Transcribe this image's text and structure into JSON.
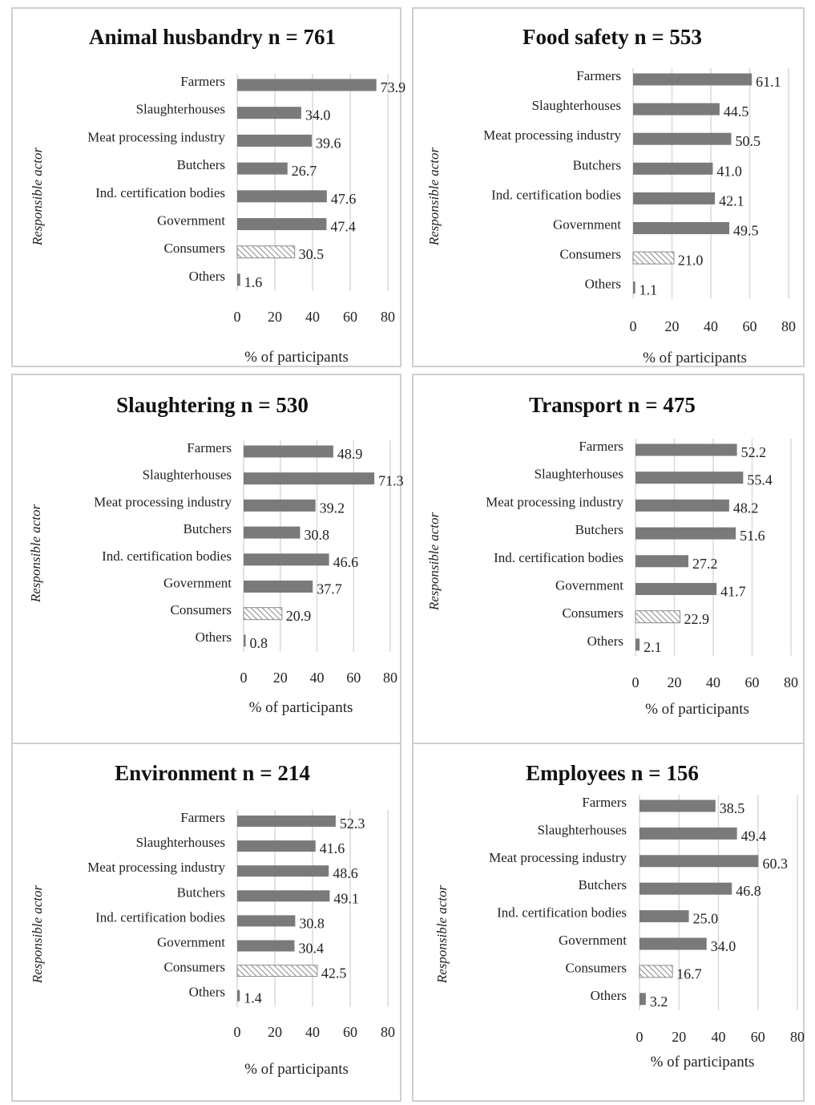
{
  "chart_data": [
    {
      "type": "bar",
      "orientation": "horizontal",
      "title": "Animal husbandry n = 761",
      "ylabel": "Responsible actor",
      "xlabel": "% of participants",
      "xlim": [
        0,
        80
      ],
      "xticks": [
        0,
        20,
        40,
        60,
        80
      ],
      "grid": true,
      "categories": [
        "Farmers",
        "Slaughterhouses",
        "Meat processing industry",
        "Butchers",
        "Ind. certification bodies",
        "Government",
        "Consumers",
        "Others"
      ],
      "values": [
        73.9,
        34.0,
        39.6,
        26.7,
        47.6,
        47.4,
        30.5,
        1.6
      ],
      "value_labels": [
        "73.9",
        "34.0",
        "39.6",
        "26.7",
        "47.6",
        "47.4",
        "30.5",
        "1.6"
      ],
      "styles": [
        "solid",
        "solid",
        "solid",
        "solid",
        "solid",
        "solid",
        "hatched",
        "solid"
      ]
    },
    {
      "type": "bar",
      "orientation": "horizontal",
      "title": "Food safety n = 553",
      "ylabel": "Responsible actor",
      "xlabel": "% of participants",
      "xlim": [
        0,
        80
      ],
      "xticks": [
        0,
        20,
        40,
        60,
        80
      ],
      "grid": true,
      "categories": [
        "Farmers",
        "Slaughterhouses",
        "Meat processing industry",
        "Butchers",
        "Ind. certification bodies",
        "Government",
        "Consumers",
        "Others"
      ],
      "values": [
        61.1,
        44.5,
        50.5,
        41.0,
        42.1,
        49.5,
        21.0,
        1.1
      ],
      "value_labels": [
        "61.1",
        "44.5",
        "50.5",
        "41.0",
        "42.1",
        "49.5",
        "21.0",
        "1.1"
      ],
      "styles": [
        "solid",
        "solid",
        "solid",
        "solid",
        "solid",
        "solid",
        "hatched",
        "solid"
      ]
    },
    {
      "type": "bar",
      "orientation": "horizontal",
      "title": "Slaughtering n = 530",
      "ylabel": "Responsible actor",
      "xlabel": "% of participants",
      "xlim": [
        0,
        80
      ],
      "xticks": [
        0,
        20,
        40,
        60,
        80
      ],
      "grid": true,
      "categories": [
        "Farmers",
        "Slaughterhouses",
        "Meat processing industry",
        "Butchers",
        "Ind. certification bodies",
        "Government",
        "Consumers",
        "Others"
      ],
      "values": [
        48.9,
        71.3,
        39.2,
        30.8,
        46.6,
        37.7,
        20.9,
        0.8
      ],
      "value_labels": [
        "48.9",
        "71.3",
        "39.2",
        "30.8",
        "46.6",
        "37.7",
        "20.9",
        "0.8"
      ],
      "styles": [
        "solid",
        "solid",
        "solid",
        "solid",
        "solid",
        "solid",
        "hatched",
        "solid"
      ]
    },
    {
      "type": "bar",
      "orientation": "horizontal",
      "title": "Transport n = 475",
      "ylabel": "Responsible actor",
      "xlabel": "% of participants",
      "xlim": [
        0,
        80
      ],
      "xticks": [
        0,
        20,
        40,
        60,
        80
      ],
      "grid": true,
      "categories": [
        "Farmers",
        "Slaughterhouses",
        "Meat processing industry",
        "Butchers",
        "Ind. certification bodies",
        "Government",
        "Consumers",
        "Others"
      ],
      "values": [
        52.2,
        55.4,
        48.2,
        51.6,
        27.2,
        41.7,
        22.9,
        2.1
      ],
      "value_labels": [
        "52.2",
        "55.4",
        "48.2",
        "51.6",
        "27.2",
        "41.7",
        "22.9",
        "2.1"
      ],
      "styles": [
        "solid",
        "solid",
        "solid",
        "solid",
        "solid",
        "solid",
        "hatched",
        "solid"
      ]
    },
    {
      "type": "bar",
      "orientation": "horizontal",
      "title": "Environment n = 214",
      "ylabel": "Responsible actor",
      "xlabel": "% of participants",
      "xlim": [
        0,
        80
      ],
      "xticks": [
        0,
        20,
        40,
        60,
        80
      ],
      "grid": true,
      "categories": [
        "Farmers",
        "Slaughterhouses",
        "Meat processing industry",
        "Butchers",
        "Ind. certification bodies",
        "Government",
        "Consumers",
        "Others"
      ],
      "values": [
        52.3,
        41.6,
        48.6,
        49.1,
        30.8,
        30.4,
        42.5,
        1.4
      ],
      "value_labels": [
        "52.3",
        "41.6",
        "48.6",
        "49.1",
        "30.8",
        "30.4",
        "42.5",
        "1.4"
      ],
      "styles": [
        "solid",
        "solid",
        "solid",
        "solid",
        "solid",
        "solid",
        "hatched",
        "solid"
      ]
    },
    {
      "type": "bar",
      "orientation": "horizontal",
      "title": "Employees n = 156",
      "ylabel": "Responsible actor",
      "xlabel": "% of participants",
      "xlim": [
        0,
        80
      ],
      "xticks": [
        0,
        20,
        40,
        60,
        80
      ],
      "grid": true,
      "categories": [
        "Farmers",
        "Slaughterhouses",
        "Meat processing industry",
        "Butchers",
        "Ind. certification bodies",
        "Government",
        "Consumers",
        "Others"
      ],
      "values": [
        38.5,
        49.4,
        60.3,
        46.8,
        25.0,
        34.0,
        16.7,
        3.2
      ],
      "value_labels": [
        "38.5",
        "49.4",
        "60.3",
        "46.8",
        "25.0",
        "34.0",
        "16.7",
        "3.2"
      ],
      "styles": [
        "solid",
        "solid",
        "solid",
        "solid",
        "solid",
        "solid",
        "hatched",
        "solid"
      ]
    }
  ],
  "colors": {
    "bar_fill": "#7a7a7a",
    "hatch_stroke": "#8a8a8a",
    "grid": "#d9d9d9",
    "panel_border": "#cfcfcf",
    "text": "#222222"
  }
}
